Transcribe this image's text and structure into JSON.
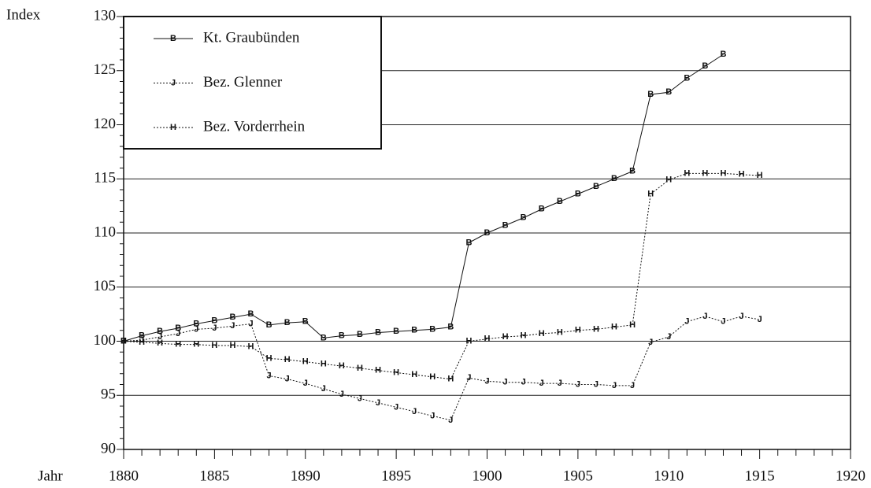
{
  "chart_data": {
    "type": "line",
    "y_label": "Index",
    "x_label": "Jahr",
    "x": [
      1880,
      1881,
      1882,
      1883,
      1884,
      1885,
      1886,
      1887,
      1888,
      1889,
      1890,
      1891,
      1892,
      1893,
      1894,
      1895,
      1896,
      1897,
      1898,
      1899,
      1900,
      1901,
      1902,
      1903,
      1904,
      1905,
      1906,
      1907,
      1908,
      1909,
      1910,
      1911,
      1912,
      1913,
      1914,
      1915
    ],
    "series": [
      {
        "name": "Kt. Graubünden",
        "marker": "B",
        "color": "#111111",
        "linestyle": "solid",
        "values": [
          100,
          100.5,
          100.9,
          101.2,
          101.6,
          101.9,
          102.2,
          102.5,
          101.5,
          101.7,
          101.8,
          100.3,
          100.5,
          100.6,
          100.8,
          100.9,
          101.0,
          101.1,
          101.3,
          109.1,
          110.0,
          110.7,
          111.4,
          112.2,
          112.9,
          113.6,
          114.3,
          115.0,
          115.7,
          122.8,
          123.0,
          124.3,
          125.4,
          126.5,
          null,
          null
        ]
      },
      {
        "name": "Bez. Glenner",
        "marker": "J",
        "color": "#111111",
        "linestyle": "dotted",
        "values": [
          100,
          100.1,
          100.4,
          100.7,
          101.1,
          101.2,
          101.4,
          101.6,
          96.8,
          96.5,
          96.1,
          95.6,
          95.1,
          94.7,
          94.3,
          93.9,
          93.5,
          93.1,
          92.7,
          96.6,
          96.3,
          96.2,
          96.2,
          96.1,
          96.1,
          96.0,
          96.0,
          95.9,
          95.9,
          99.9,
          100.4,
          101.8,
          102.3,
          101.8,
          102.3,
          102.0
        ]
      },
      {
        "name": "Bez. Vorderrhein",
        "marker": "H",
        "color": "#111111",
        "linestyle": "dotted",
        "values": [
          100,
          99.9,
          99.8,
          99.7,
          99.7,
          99.6,
          99.6,
          99.5,
          98.4,
          98.3,
          98.1,
          97.9,
          97.7,
          97.5,
          97.3,
          97.1,
          96.9,
          96.7,
          96.5,
          100.0,
          100.2,
          100.4,
          100.5,
          100.7,
          100.8,
          101.0,
          101.1,
          101.3,
          101.5,
          113.6,
          114.9,
          115.5,
          115.5,
          115.5,
          115.4,
          115.3
        ]
      }
    ],
    "xlim": [
      1880,
      1920
    ],
    "xticks": [
      1880,
      1885,
      1890,
      1895,
      1900,
      1905,
      1910,
      1915,
      1920
    ],
    "ylim": [
      90,
      130
    ],
    "yticks": [
      90,
      95,
      100,
      105,
      110,
      115,
      120,
      125,
      130
    ],
    "grid": true,
    "legend": "upper left"
  }
}
